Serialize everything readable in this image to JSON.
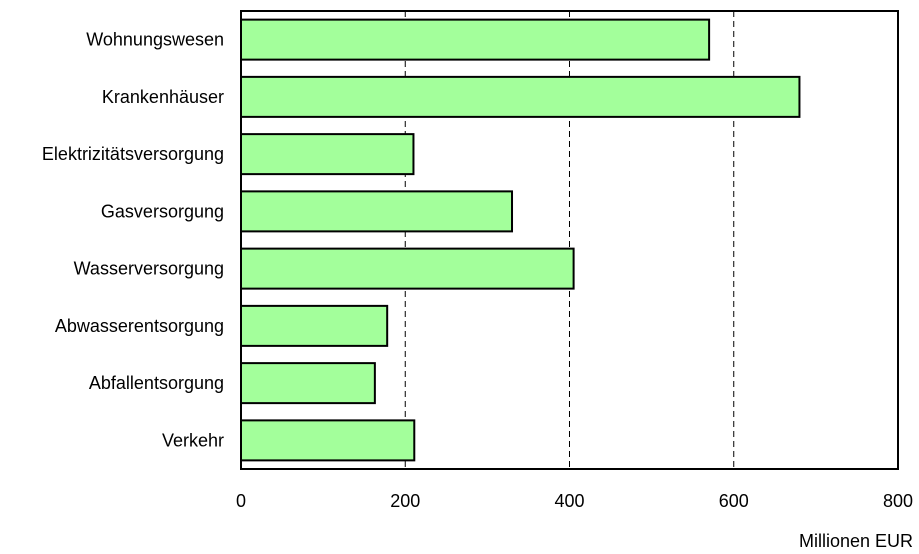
{
  "chart_data": {
    "type": "bar",
    "orientation": "horizontal",
    "title": "",
    "xlabel": "Millionen EUR",
    "ylabel": "",
    "categories": [
      "Wohnungswesen",
      "Krankenhäuser",
      "Elektrizitätsversorgung",
      "Gasversorgung",
      "Wasserversorgung",
      "Abwasserentsorgung",
      "Abfallentsorgung",
      "Verkehr"
    ],
    "values": [
      570,
      680,
      210,
      330,
      405,
      178,
      163,
      211
    ],
    "xlim": [
      0,
      800
    ],
    "xticks": [
      0,
      200,
      400,
      600,
      800
    ],
    "xtick_labels": [
      "0",
      "200",
      "400",
      "600",
      "800"
    ],
    "grid": "vertical dashed lines at major ticks",
    "legend": "none",
    "colors": {
      "bar_fill": "#a3ff9b",
      "bar_stroke": "#000000",
      "grid": "#000000",
      "axis": "#000000"
    }
  }
}
